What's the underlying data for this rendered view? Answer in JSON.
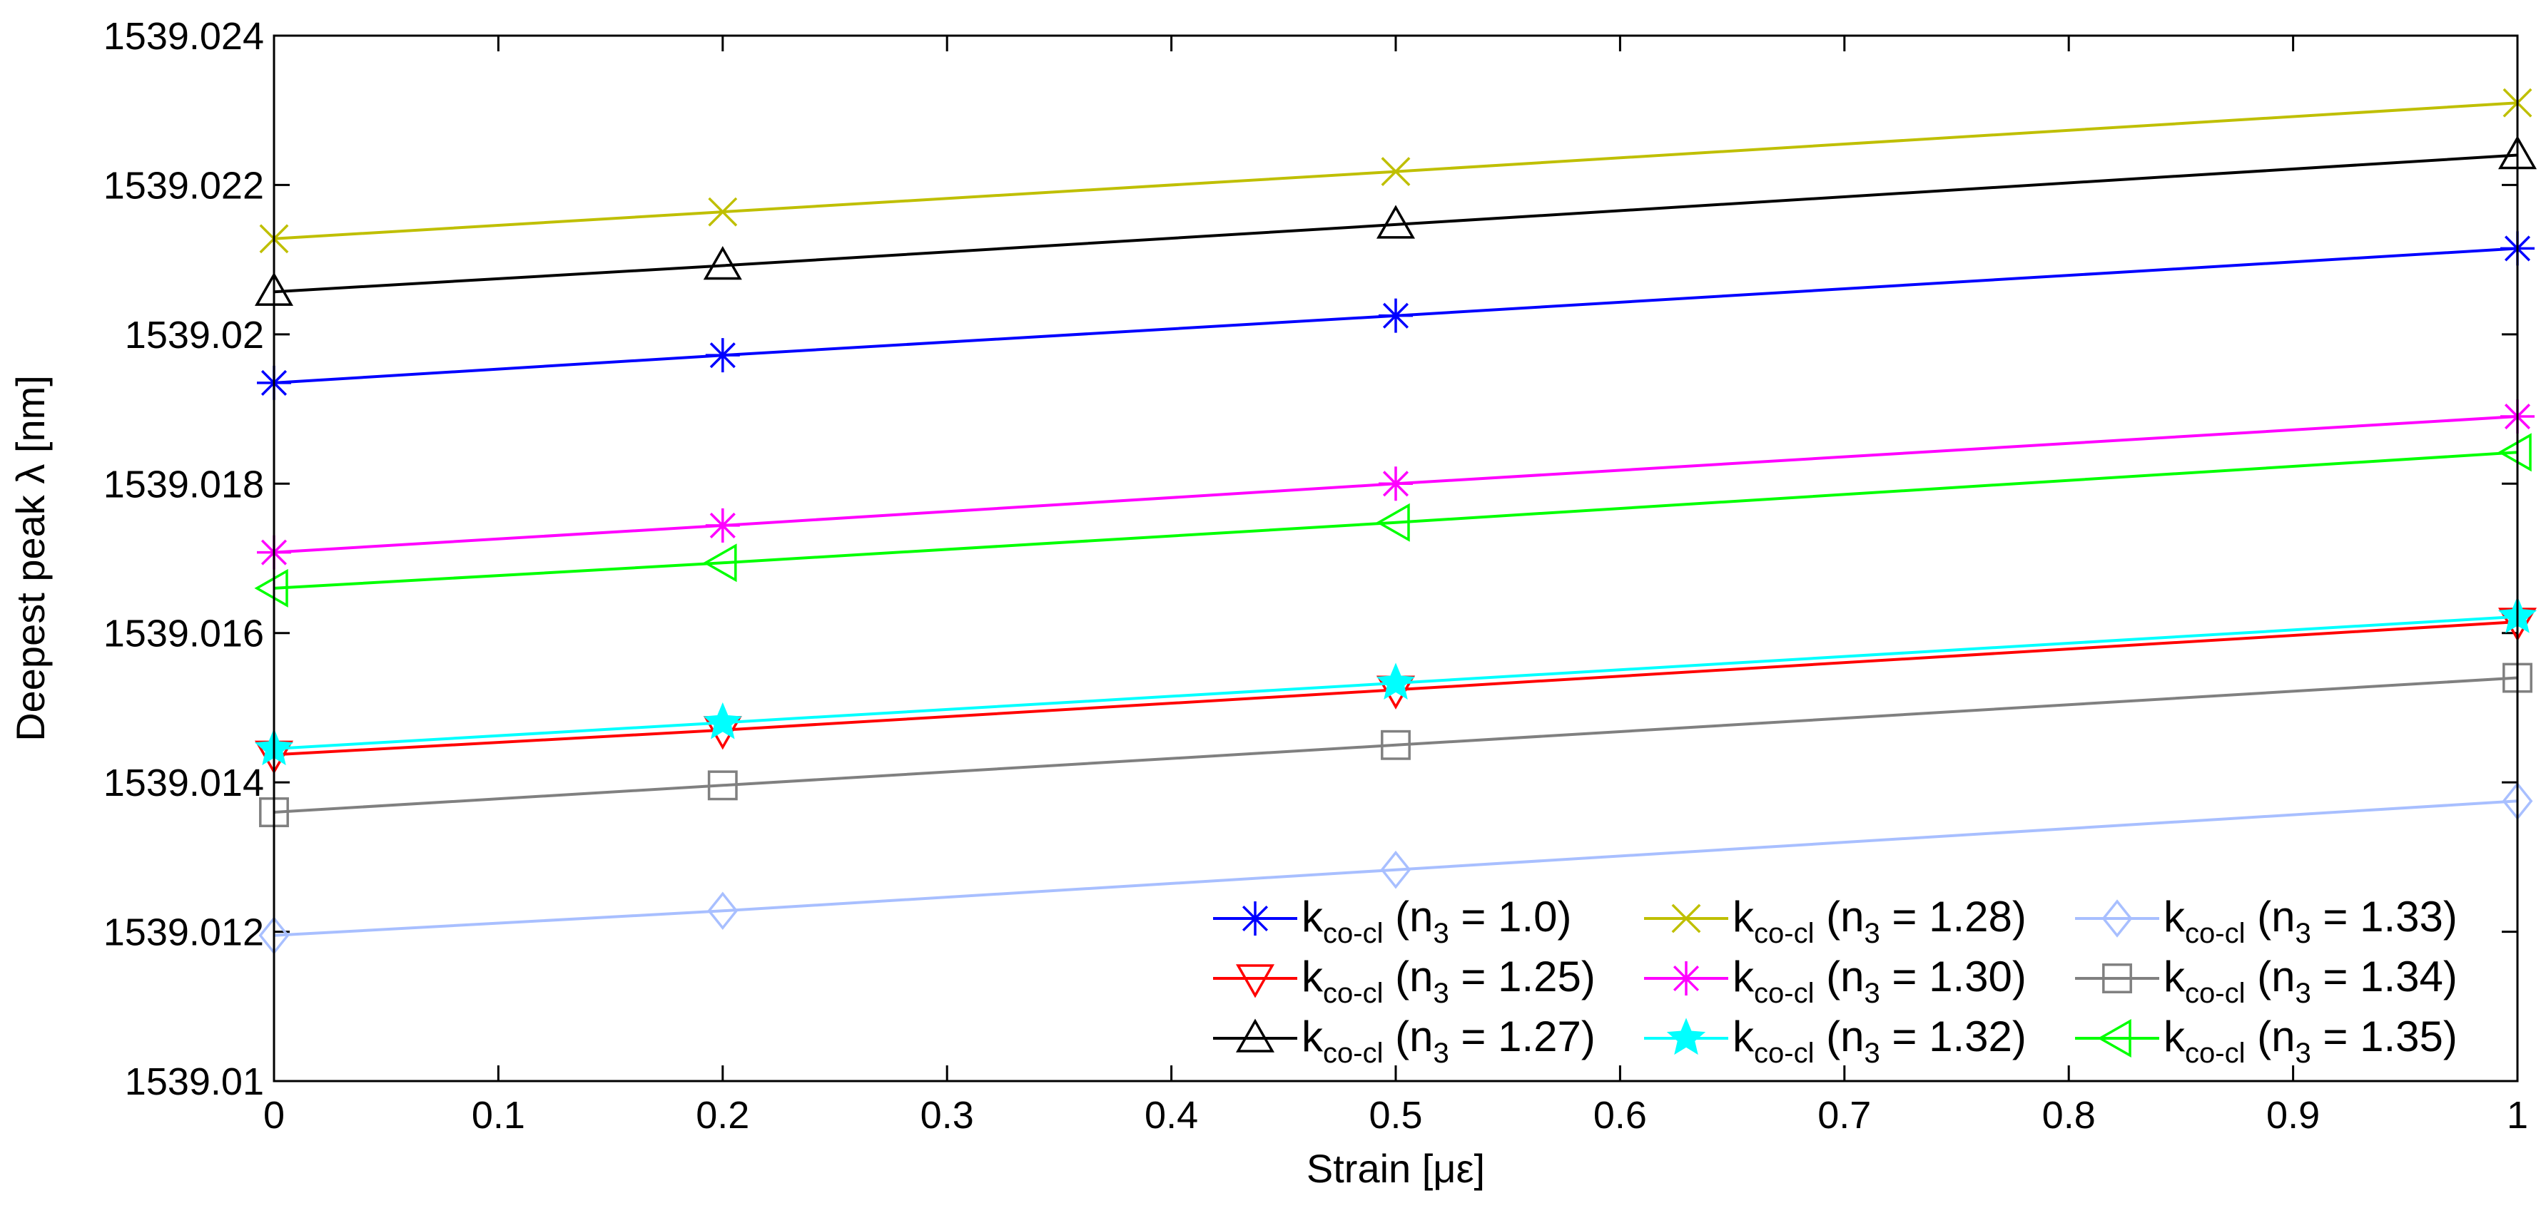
{
  "chart_data": {
    "type": "line",
    "title": "",
    "xlabel": "Strain [με]",
    "ylabel": "Deepest peak λ [nm]",
    "xlim": [
      0,
      1
    ],
    "ylim": [
      1539.01,
      1539.024
    ],
    "x_ticks": [
      "0",
      "0.1",
      "0.2",
      "0.3",
      "0.4",
      "0.5",
      "0.6",
      "0.7",
      "0.8",
      "0.9",
      "1"
    ],
    "y_ticks": [
      "1539.01",
      "1539.012",
      "1539.014",
      "1539.016",
      "1539.018",
      "1539.02",
      "1539.022",
      "1539.024"
    ],
    "x": [
      0,
      0.2,
      0.5,
      1
    ],
    "legend_position": "bottom-right",
    "series": [
      {
        "name": "n3 = 1.0",
        "label_main": "k",
        "label_sub": "co-cl",
        "label_open": " (n",
        "label_idx": "3",
        "label_rest": " = 1.0)",
        "color": "#0000ff",
        "marker": "asterisk",
        "values": [
          1539.01935,
          1539.01972,
          1539.02025,
          1539.02115
        ]
      },
      {
        "name": "n3 = 1.25",
        "label_main": "k",
        "label_sub": "co-cl",
        "label_open": " (n",
        "label_idx": "3",
        "label_rest": " = 1.25)",
        "color": "#ff0000",
        "marker": "triangle-down",
        "values": [
          1539.01437,
          1539.0147,
          1539.01524,
          1539.01615
        ]
      },
      {
        "name": "n3 = 1.27",
        "label_main": "k",
        "label_sub": "co-cl",
        "label_open": " (n",
        "label_idx": "3",
        "label_rest": " = 1.27)",
        "color": "#000000",
        "marker": "triangle-up",
        "values": [
          1539.02057,
          1539.02092,
          1539.02147,
          1539.0224
        ]
      },
      {
        "name": "n3 = 1.28",
        "label_main": "k",
        "label_sub": "co-cl",
        "label_open": " (n",
        "label_idx": "3",
        "label_rest": " = 1.28)",
        "color": "#bfbf00",
        "marker": "x",
        "values": [
          1539.02128,
          1539.02164,
          1539.02218,
          1539.0231
        ]
      },
      {
        "name": "n3 = 1.30",
        "label_main": "k",
        "label_sub": "co-cl",
        "label_open": " (n",
        "label_idx": "3",
        "label_rest": " = 1.30)",
        "color": "#ff00ff",
        "marker": "asterisk",
        "values": [
          1539.01708,
          1539.01744,
          1539.018,
          1539.0189
        ]
      },
      {
        "name": "n3 = 1.32",
        "label_main": "k",
        "label_sub": "co-cl",
        "label_open": " (n",
        "label_idx": "3",
        "label_rest": " = 1.32)",
        "color": "#00ffff",
        "marker": "star",
        "values": [
          1539.01445,
          1539.0148,
          1539.01533,
          1539.01622
        ]
      },
      {
        "name": "n3 = 1.33",
        "label_main": "k",
        "label_sub": "co-cl",
        "label_open": " (n",
        "label_idx": "3",
        "label_rest": " = 1.33)",
        "color": "#a8bfff",
        "marker": "diamond",
        "values": [
          1539.01195,
          1539.01228,
          1539.01283,
          1539.01375
        ]
      },
      {
        "name": "n3 = 1.34",
        "label_main": "k",
        "label_sub": "co-cl",
        "label_open": " (n",
        "label_idx": "3",
        "label_rest": " = 1.34)",
        "color": "#808080",
        "marker": "square",
        "values": [
          1539.0136,
          1539.01396,
          1539.0145,
          1539.0154
        ]
      },
      {
        "name": "n3 = 1.35",
        "label_main": "k",
        "label_sub": "co-cl",
        "label_open": " (n",
        "label_idx": "3",
        "label_rest": " = 1.35)",
        "color": "#00ff00",
        "marker": "triangle-left",
        "values": [
          1539.0166,
          1539.01694,
          1539.01748,
          1539.01842
        ]
      }
    ],
    "legend_order": [
      "n3 = 1.0",
      "n3 = 1.28",
      "n3 = 1.33",
      "n3 = 1.25",
      "n3 = 1.30",
      "n3 = 1.34",
      "n3 = 1.27",
      "n3 = 1.32",
      "n3 = 1.35"
    ]
  }
}
